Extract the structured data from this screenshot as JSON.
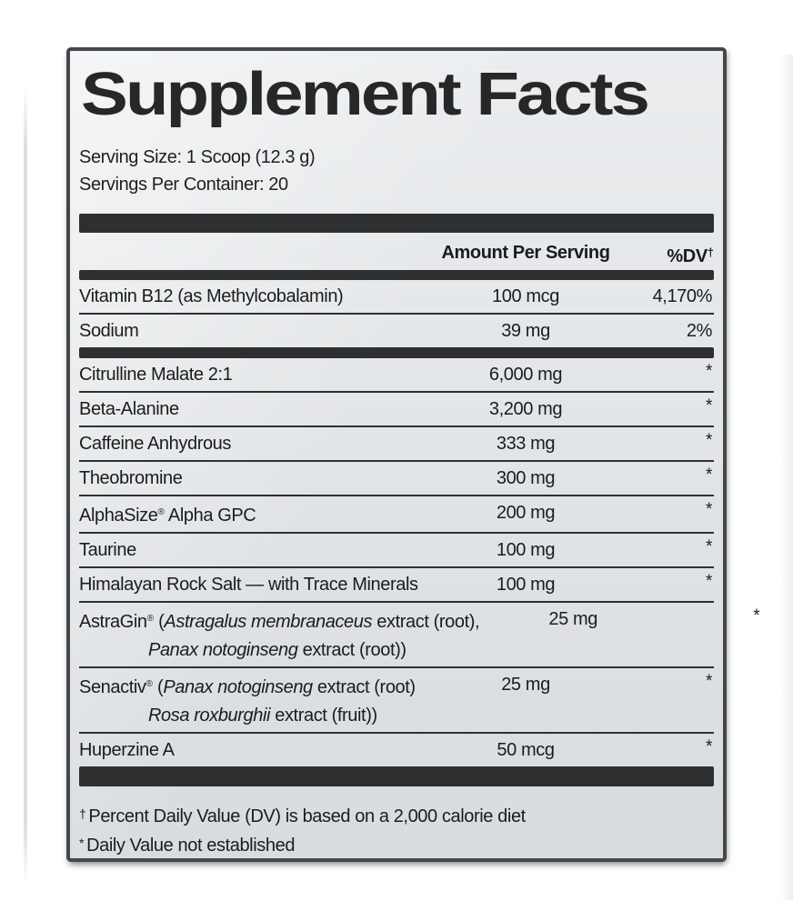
{
  "title": "Supplement Facts",
  "serving": {
    "size_line": "Serving Size: 1 Scoop (12.3 g)",
    "per_container_line": "Servings Per Container: 20"
  },
  "table": {
    "header": {
      "amount": "Amount Per Serving",
      "dv": "%DV",
      "dv_sup": "†"
    },
    "rows": [
      {
        "section": "daily",
        "amount": "100 mcg",
        "dv": "4,170%",
        "dv_type": "percent",
        "name": [
          [
            {
              "text": "Vitamin B12 (as Methylcobalamin)"
            }
          ]
        ]
      },
      {
        "section": "daily",
        "amount": "39 mg",
        "dv": "2%",
        "dv_type": "percent",
        "name": [
          [
            {
              "text": "Sodium"
            }
          ]
        ]
      },
      {
        "section": "other",
        "amount": "6,000 mg",
        "dv": "*",
        "dv_type": "asterisk",
        "name": [
          [
            {
              "text": "Citrulline Malate 2:1"
            }
          ]
        ]
      },
      {
        "section": "other",
        "amount": "3,200 mg",
        "dv": "*",
        "dv_type": "asterisk",
        "name": [
          [
            {
              "text": "Beta-Alanine"
            }
          ]
        ]
      },
      {
        "section": "other",
        "amount": "333 mg",
        "dv": "*",
        "dv_type": "asterisk",
        "name": [
          [
            {
              "text": "Caffeine Anhydrous"
            }
          ]
        ]
      },
      {
        "section": "other",
        "amount": "300 mg",
        "dv": "*",
        "dv_type": "asterisk",
        "name": [
          [
            {
              "text": "Theobromine"
            }
          ]
        ]
      },
      {
        "section": "other",
        "amount": "200 mg",
        "dv": "*",
        "dv_type": "asterisk",
        "name": [
          [
            {
              "text": "AlphaSize"
            },
            {
              "text": "®",
              "sup": true
            },
            {
              "text": " Alpha GPC"
            }
          ]
        ]
      },
      {
        "section": "other",
        "amount": "100 mg",
        "dv": "*",
        "dv_type": "asterisk",
        "name": [
          [
            {
              "text": "Taurine"
            }
          ]
        ]
      },
      {
        "section": "other",
        "amount": "100 mg",
        "dv": "*",
        "dv_type": "asterisk",
        "name": [
          [
            {
              "text": "Himalayan Rock Salt — with Trace Minerals"
            }
          ]
        ]
      },
      {
        "section": "other",
        "amount": "25 mg",
        "dv": "*",
        "dv_type": "asterisk",
        "name": [
          [
            {
              "text": "AstraGin"
            },
            {
              "text": "®",
              "sup": true
            },
            {
              "text": " ("
            },
            {
              "text": "Astragalus membranaceus",
              "italic": true
            },
            {
              "text": " extract (root),"
            }
          ],
          [
            {
              "text": "Panax notoginseng",
              "italic": true
            },
            {
              "text": " extract (root))"
            }
          ]
        ]
      },
      {
        "section": "other",
        "amount": "25 mg",
        "dv": "*",
        "dv_type": "asterisk",
        "name": [
          [
            {
              "text": "Senactiv"
            },
            {
              "text": "®",
              "sup": true
            },
            {
              "text": " ("
            },
            {
              "text": "Panax notoginseng",
              "italic": true
            },
            {
              "text": " extract (root)"
            }
          ],
          [
            {
              "text": "Rosa roxburghii",
              "italic": true
            },
            {
              "text": " extract (fruit))"
            }
          ]
        ]
      },
      {
        "section": "other",
        "amount": "50 mcg",
        "dv": "*",
        "dv_type": "asterisk",
        "name": [
          [
            {
              "text": "Huperzine A"
            }
          ]
        ]
      }
    ]
  },
  "footnotes": [
    {
      "symbol": "†",
      "text": "Percent Daily Value (DV) is based on a 2,000 calorie diet"
    },
    {
      "symbol": "*",
      "text": "Daily Value not established"
    }
  ],
  "colors": {
    "label_bg": "#e2e5e8",
    "bar": "#2d2f30",
    "text": "#1a1c1e",
    "border": "#45484b"
  }
}
